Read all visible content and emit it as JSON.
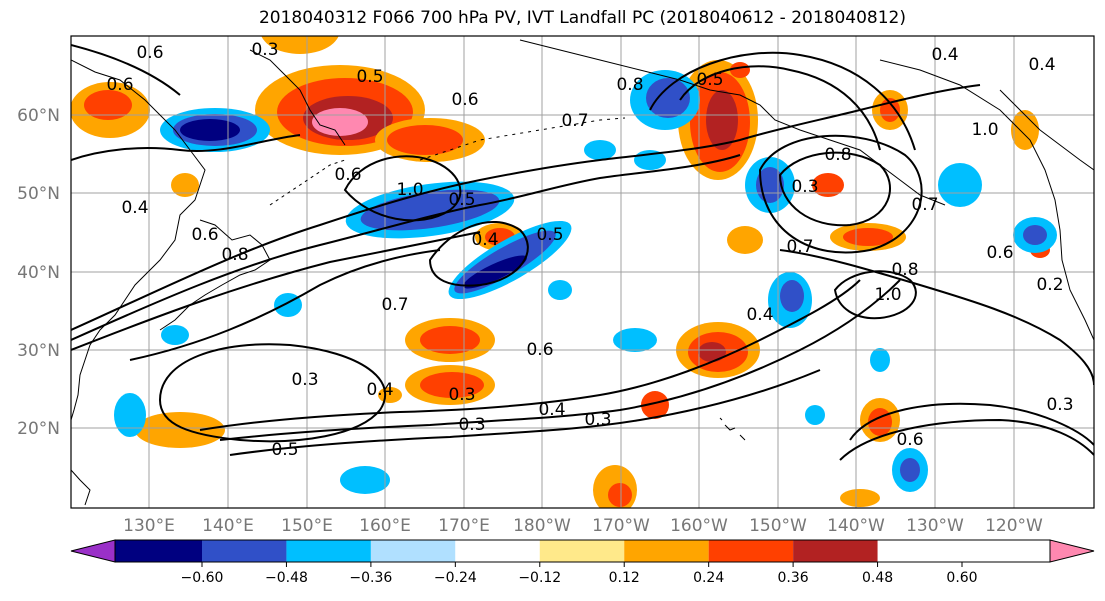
{
  "title": "2018040312 F066 700 hPa PV, IVT Landfall PC (2018040612 - 2018040812)",
  "lat_labels": [
    "60°N",
    "50°N",
    "40°N",
    "30°N",
    "20°N"
  ],
  "lon_labels": [
    "130°E",
    "140°E",
    "150°E",
    "160°E",
    "170°E",
    "180°W",
    "170°W",
    "160°W",
    "150°W",
    "140°W",
    "130°W",
    "120°W"
  ],
  "colorbar": {
    "colors": [
      "#9a30c8",
      "#000080",
      "#3050c8",
      "#00bfff",
      "#b0e0ff",
      "#ffffff",
      "#ffe98a",
      "#ffa500",
      "#ff4000",
      "#b22222",
      "#ff88b0"
    ],
    "ticks": [
      "−0.60",
      "−0.48",
      "−0.36",
      "−0.24",
      "−0.12",
      "0.12",
      "0.24",
      "0.36",
      "0.48",
      "0.60"
    ]
  },
  "contour_labels": [
    "0.6",
    "0.3",
    "0.5",
    "0.6",
    "0.7",
    "0.8",
    "0.4",
    "0.6",
    "1.0",
    "0.5",
    "0.4",
    "0.5",
    "0.6",
    "0.7",
    "0.8",
    "0.7",
    "1.0",
    "0.8",
    "1.0",
    "0.6",
    "0.6",
    "0.7",
    "0.4",
    "0.3",
    "0.3",
    "0.3",
    "0.3",
    "0.5",
    "0.4",
    "0.3",
    "0.6",
    "0.2",
    "0.4",
    "0.4",
    "0.6",
    "0.4",
    "0.3",
    "0.5",
    "0.8"
  ]
}
